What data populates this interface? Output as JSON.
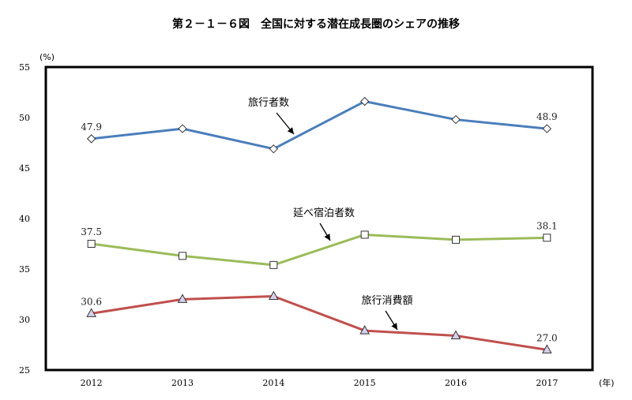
{
  "chart_data": {
    "type": "line",
    "title": "第２－１－６図　全国に対する潜在成長圏のシェアの推移",
    "ylabel": "(%)",
    "xlabel": "(年)",
    "ylim": [
      25,
      55
    ],
    "yticks": [
      25,
      30,
      35,
      40,
      45,
      50,
      55
    ],
    "categories": [
      "2012",
      "2013",
      "2014",
      "2015",
      "2016",
      "2017"
    ],
    "grid": false,
    "series": [
      {
        "name": "旅行者数",
        "values": [
          47.9,
          48.9,
          46.9,
          51.6,
          49.8,
          48.9
        ],
        "color": "#4a7ebb",
        "marker": "diamond",
        "first_label": "47.9",
        "last_label": "48.9"
      },
      {
        "name": "延べ宿泊者数",
        "values": [
          37.5,
          36.3,
          35.4,
          38.4,
          37.9,
          38.1
        ],
        "color": "#9bbb59",
        "marker": "square",
        "first_label": "37.5",
        "last_label": "38.1"
      },
      {
        "name": "旅行消費額",
        "values": [
          30.6,
          32.0,
          32.3,
          28.9,
          28.4,
          27.0
        ],
        "color": "#c0504d",
        "marker": "triangle",
        "first_label": "30.6",
        "last_label": "27.0"
      }
    ]
  }
}
